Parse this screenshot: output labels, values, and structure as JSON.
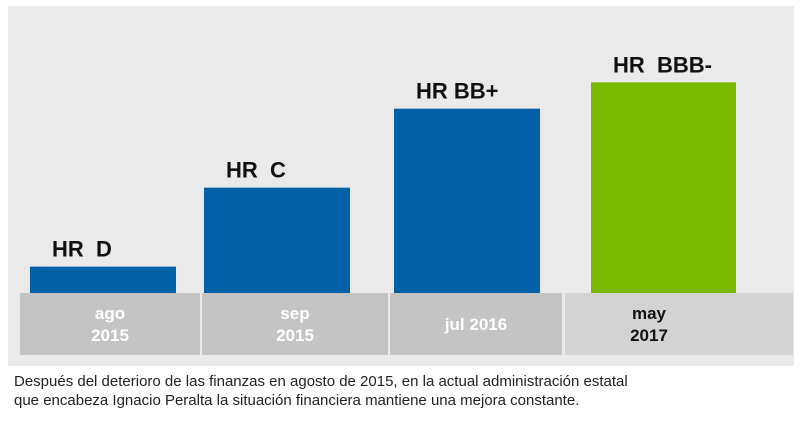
{
  "chart_data": {
    "type": "bar",
    "categories": [
      [
        "ago",
        "2015"
      ],
      [
        "sep",
        "2015"
      ],
      [
        "jul 2016"
      ],
      [
        "may",
        "2017"
      ]
    ],
    "values": [
      1,
      4,
      7,
      8
    ],
    "bar_labels": [
      "HR  D",
      "HR  C",
      "HR BB+",
      "HR  BBB-"
    ],
    "ylim": [
      0,
      9
    ],
    "colors": [
      "#0061a8",
      "#0061a8",
      "#0061a8",
      "#7ab800"
    ],
    "category_band_colors": [
      "#c4c4c4",
      "#c4c4c4",
      "#c4c4c4",
      "#d3d3d3"
    ],
    "category_text_colors": [
      "#ffffff",
      "#ffffff",
      "#ffffff",
      "#111111"
    ],
    "title": "",
    "xlabel": "",
    "ylabel": ""
  },
  "caption": {
    "line1": "Después del deterioro de las finanzas en agosto de 2015, en la actual administración estatal",
    "line2": "que encabeza Ignacio Peralta la situación financiera mantiene una mejora constante."
  }
}
